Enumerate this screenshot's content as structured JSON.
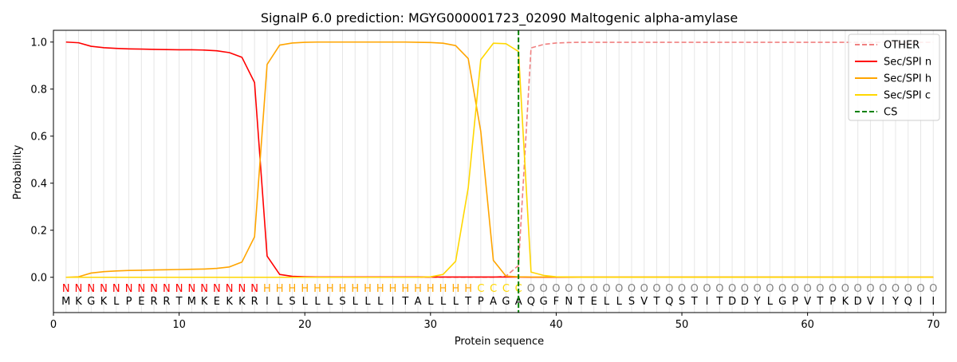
{
  "chart_data": {
    "type": "line",
    "title": "SignalP 6.0 prediction: MGYG000001723_02090 Maltogenic alpha-amylase",
    "xlabel": "Protein sequence",
    "ylabel": "Probability",
    "xlim": [
      0,
      71
    ],
    "ylim": [
      -0.15,
      1.05
    ],
    "x_ticks": [
      0,
      10,
      20,
      30,
      40,
      50,
      60,
      70
    ],
    "y_ticks": [
      0.0,
      0.2,
      0.4,
      0.6,
      0.8,
      1.0
    ],
    "x_tick_labels": [
      "0",
      "10",
      "20",
      "30",
      "40",
      "50",
      "60",
      "70"
    ],
    "y_tick_labels": [
      "0.0",
      "0.2",
      "0.4",
      "0.6",
      "0.8",
      "1.0"
    ],
    "grid": "vertical lines at each residue",
    "legend_position": "top-right",
    "sequence": [
      "M",
      "K",
      "G",
      "K",
      "L",
      "P",
      "E",
      "R",
      "R",
      "T",
      "M",
      "K",
      "E",
      "K",
      "K",
      "R",
      "I",
      "L",
      "S",
      "L",
      "L",
      "L",
      "S",
      "L",
      "L",
      "L",
      "I",
      "T",
      "A",
      "L",
      "L",
      "L",
      "T",
      "P",
      "A",
      "G",
      "A",
      "Q",
      "G",
      "F",
      "N",
      "T",
      "E",
      "L",
      "L",
      "S",
      "V",
      "T",
      "Q",
      "S",
      "T",
      "I",
      "T",
      "D",
      "D",
      "Y",
      "L",
      "G",
      "P",
      "V",
      "T",
      "P",
      "K",
      "D",
      "V",
      "I",
      "Y",
      "Q",
      "I",
      "I"
    ],
    "region_labels": [
      "N",
      "N",
      "N",
      "N",
      "N",
      "N",
      "N",
      "N",
      "N",
      "N",
      "N",
      "N",
      "N",
      "N",
      "N",
      "N",
      "H",
      "H",
      "H",
      "H",
      "H",
      "H",
      "H",
      "H",
      "H",
      "H",
      "H",
      "H",
      "H",
      "H",
      "H",
      "H",
      "H",
      "C",
      "C",
      "C",
      "C",
      "O",
      "O",
      "O",
      "O",
      "O",
      "O",
      "O",
      "O",
      "O",
      "O",
      "O",
      "O",
      "O",
      "O",
      "O",
      "O",
      "O",
      "O",
      "O",
      "O",
      "O",
      "O",
      "O",
      "O",
      "O",
      "O",
      "O",
      "O",
      "O",
      "O",
      "O",
      "O",
      "O"
    ],
    "region_colors": {
      "N": "#ff0000",
      "H": "#ffa500",
      "C": "#ffd700",
      "O": "#808080"
    },
    "cleavage_site": 37,
    "series": [
      {
        "name": "OTHER",
        "color": "#f08080",
        "style": "dashed",
        "values": [
          0,
          0,
          0,
          0,
          0,
          0,
          0,
          0,
          0,
          0,
          0,
          0,
          0,
          0,
          0,
          0,
          0,
          0,
          0,
          0,
          0,
          0,
          0,
          0,
          0,
          0,
          0,
          0,
          0,
          0,
          0,
          0,
          0,
          0,
          0,
          0.005,
          0.05,
          0.975,
          0.99,
          0.996,
          0.998,
          0.999,
          0.999,
          0.999,
          0.999,
          0.999,
          0.999,
          0.999,
          0.999,
          0.999,
          0.999,
          0.999,
          0.999,
          0.999,
          0.999,
          0.999,
          0.999,
          0.999,
          0.999,
          0.999,
          0.999,
          0.999,
          0.999,
          0.999,
          0.999,
          0.999,
          0.999,
          0.999,
          0.999,
          0.999
        ]
      },
      {
        "name": "Sec/SPI n",
        "color": "#ff0000",
        "style": "solid",
        "values": [
          1.0,
          0.997,
          0.982,
          0.976,
          0.973,
          0.971,
          0.97,
          0.969,
          0.968,
          0.967,
          0.967,
          0.966,
          0.963,
          0.955,
          0.935,
          0.828,
          0.09,
          0.012,
          0.004,
          0.002,
          0.001,
          0.001,
          0.001,
          0.001,
          0.001,
          0.001,
          0.001,
          0.001,
          0.001,
          0.001,
          0.001,
          0.001,
          0.001,
          0.001,
          0.001,
          0.001,
          0.001,
          0,
          0,
          0,
          0,
          0,
          0,
          0,
          0,
          0,
          0,
          0,
          0,
          0,
          0,
          0,
          0,
          0,
          0,
          0,
          0,
          0,
          0,
          0,
          0,
          0,
          0,
          0,
          0,
          0,
          0,
          0,
          0,
          0
        ]
      },
      {
        "name": "Sec/SPI h",
        "color": "#ffa500",
        "style": "solid",
        "values": [
          0.0,
          0.002,
          0.018,
          0.024,
          0.027,
          0.029,
          0.03,
          0.031,
          0.032,
          0.033,
          0.034,
          0.035,
          0.038,
          0.044,
          0.065,
          0.172,
          0.905,
          0.987,
          0.996,
          0.999,
          1.0,
          1.0,
          1.0,
          1.0,
          1.0,
          1.0,
          1.0,
          1.0,
          0.999,
          0.998,
          0.995,
          0.985,
          0.93,
          0.62,
          0.072,
          0.005,
          0.002,
          0.001,
          0.001,
          0.001,
          0.001,
          0.001,
          0.001,
          0.001,
          0.001,
          0.001,
          0.001,
          0.001,
          0.001,
          0.001,
          0.001,
          0.001,
          0.001,
          0.001,
          0.001,
          0.001,
          0.001,
          0.001,
          0.001,
          0.001,
          0.001,
          0.001,
          0.001,
          0.001,
          0.001,
          0.001,
          0.001,
          0.001,
          0.001,
          0.001
        ]
      },
      {
        "name": "Sec/SPI c",
        "color": "#ffd700",
        "style": "solid",
        "values": [
          0,
          0,
          0,
          0,
          0,
          0,
          0,
          0,
          0,
          0,
          0,
          0,
          0,
          0,
          0,
          0,
          0,
          0,
          0,
          0,
          0,
          0,
          0,
          0,
          0,
          0,
          0,
          0,
          0,
          0.002,
          0.012,
          0.068,
          0.38,
          0.925,
          0.995,
          0.993,
          0.96,
          0.022,
          0.008,
          0.002,
          0.001,
          0,
          0,
          0,
          0,
          0,
          0,
          0,
          0,
          0,
          0,
          0,
          0,
          0,
          0,
          0,
          0,
          0,
          0,
          0,
          0,
          0,
          0,
          0,
          0,
          0,
          0,
          0,
          0,
          0
        ]
      },
      {
        "name": "CS",
        "color": "#008000",
        "style": "dashed-vertical",
        "x": 37
      }
    ]
  }
}
